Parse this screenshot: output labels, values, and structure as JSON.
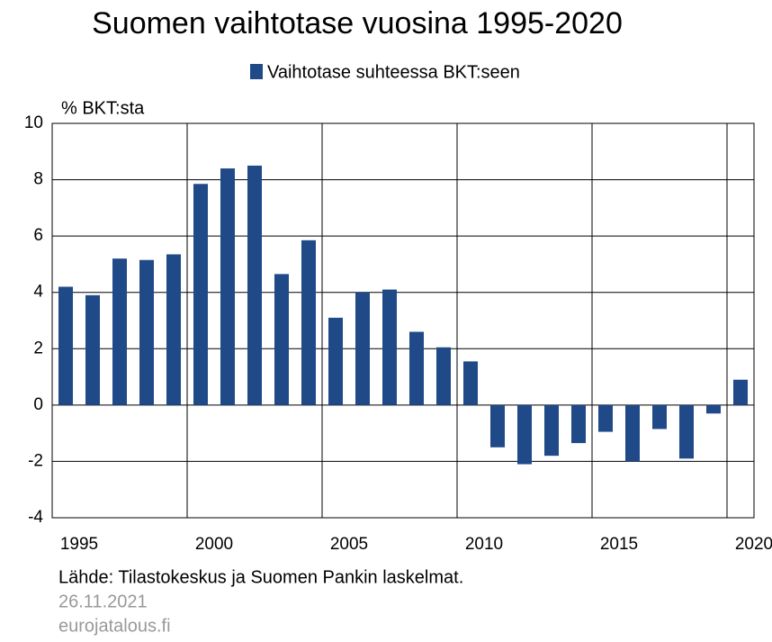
{
  "chart_data": {
    "type": "bar",
    "title": "Suomen vaihtotase vuosina 1995-2020",
    "y_label": "% BKT:sta",
    "source": "Lähde: Tilastokeskus ja Suomen Pankin laskelmat.",
    "date": "26.11.2021",
    "site": "eurojatalous.fi",
    "categories": [
      "1995",
      null,
      null,
      null,
      null,
      "2000",
      null,
      null,
      null,
      null,
      "2005",
      null,
      null,
      null,
      null,
      "2010",
      null,
      null,
      null,
      null,
      "2015",
      null,
      null,
      null,
      null,
      "2020"
    ],
    "series": [
      {
        "name": "Vaihtotase suhteessa BKT:seen",
        "color": "#1f4a87",
        "values": [
          4.2,
          3.9,
          5.2,
          5.15,
          5.35,
          7.85,
          8.4,
          8.5,
          4.65,
          5.85,
          3.1,
          4.0,
          4.1,
          2.6,
          2.05,
          1.55,
          -1.5,
          -2.1,
          -1.8,
          -1.35,
          -0.95,
          -2.0,
          -0.85,
          -1.9,
          -0.3,
          0.9
        ]
      }
    ],
    "ylim": [
      -4,
      10
    ],
    "yticks": [
      -4,
      -2,
      0,
      2,
      4,
      6,
      8,
      10
    ],
    "grid": true
  }
}
